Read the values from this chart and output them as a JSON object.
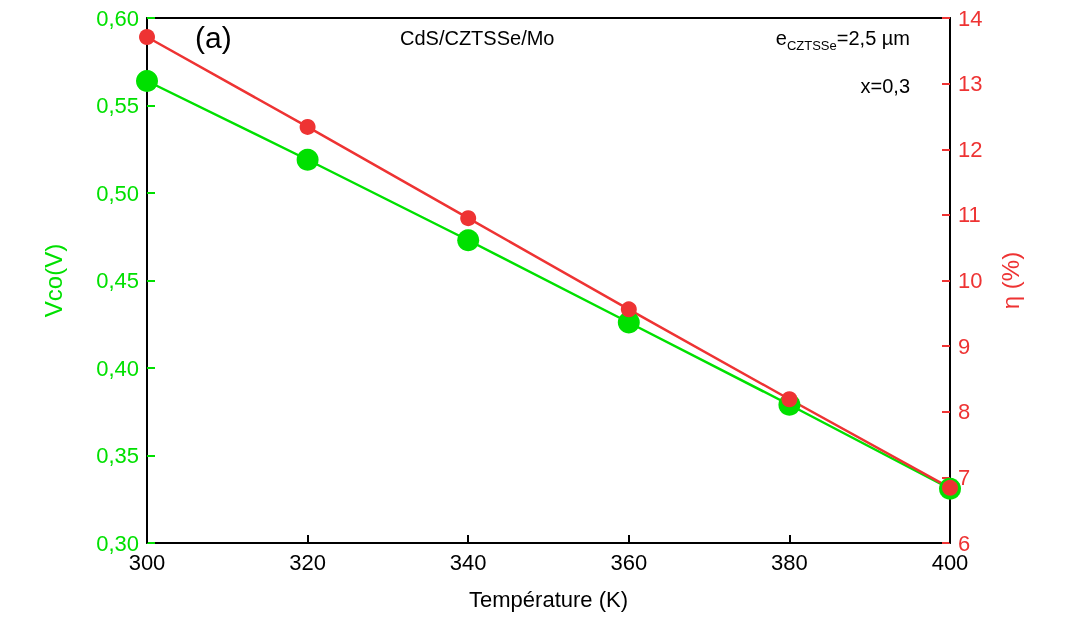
{
  "chart_data": {
    "type": "line",
    "xlabel": "Température (K)",
    "ylabel": "Vco(V)",
    "y2label": "η (%)",
    "x": [
      300,
      320,
      340,
      360,
      380,
      400
    ],
    "series": [
      {
        "color": "#00e000",
        "values": [
          0.564,
          0.519,
          0.473,
          0.426,
          0.379,
          0.331
        ]
      },
      {
        "color": "#ee3333",
        "axis": "y2",
        "values": [
          13.71,
          12.34,
          10.95,
          9.56,
          8.19,
          6.84
        ]
      }
    ],
    "xlim": [
      300,
      400
    ],
    "xticks": [
      300,
      320,
      340,
      360,
      380,
      400
    ],
    "ylim": [
      0.3,
      0.6
    ],
    "yticks": [
      {
        "value": 0.3,
        "label": "0,30"
      },
      {
        "value": 0.35,
        "label": "0,35"
      },
      {
        "value": 0.4,
        "label": "0,40"
      },
      {
        "value": 0.45,
        "label": "0,45"
      },
      {
        "value": 0.5,
        "label": "0,50"
      },
      {
        "value": 0.55,
        "label": "0,55"
      },
      {
        "value": 0.6,
        "label": "0,60"
      }
    ],
    "y2lim": [
      6,
      14
    ],
    "y2ticks": [
      6,
      7,
      8,
      9,
      10,
      11,
      12,
      13,
      14
    ],
    "annotations": [
      "(a)",
      "CdS/CZTSSe/Mo",
      "e$_{CZTSSe}$=2,5 µm",
      "x=0,3"
    ],
    "marker": "circle",
    "line_style": "solid",
    "grid": false
  }
}
